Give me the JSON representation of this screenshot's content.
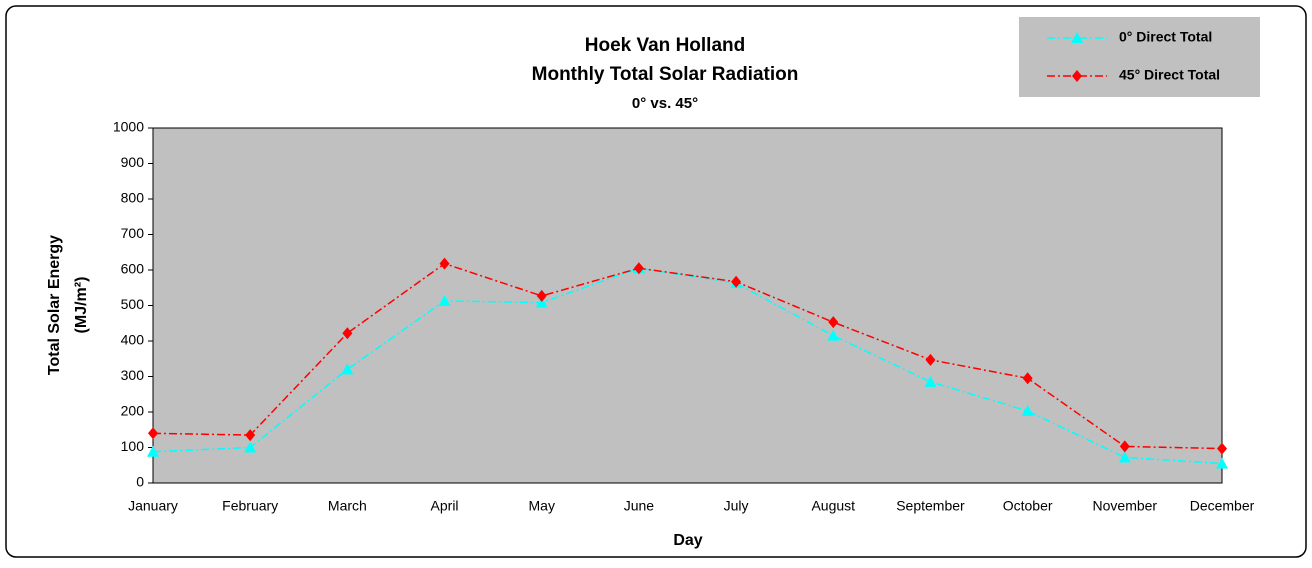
{
  "chart_data": {
    "type": "line",
    "title": [
      "Hoek Van Holland",
      "Monthly Total Solar Radiation",
      "0° vs. 45°"
    ],
    "xlabel": "Day",
    "ylabel": [
      "Total Solar Energy",
      "(MJ/m²)"
    ],
    "categories": [
      "January",
      "February",
      "March",
      "April",
      "May",
      "June",
      "July",
      "August",
      "September",
      "October",
      "November",
      "December"
    ],
    "series": [
      {
        "name": "0° Direct Total",
        "color": "#00ffff",
        "marker": "triangle",
        "values": [
          88,
          100,
          320,
          513,
          508,
          605,
          563,
          415,
          285,
          203,
          72,
          55
        ]
      },
      {
        "name": "45° Direct Total",
        "color": "#ff0000",
        "marker": "diamond",
        "values": [
          140,
          135,
          422,
          618,
          527,
          605,
          567,
          453,
          347,
          295,
          103,
          97
        ]
      }
    ],
    "ylim": [
      0,
      1000
    ],
    "yticks": [
      0,
      100,
      200,
      300,
      400,
      500,
      600,
      700,
      800,
      900,
      1000
    ],
    "grid": false,
    "legend": "top-right"
  }
}
